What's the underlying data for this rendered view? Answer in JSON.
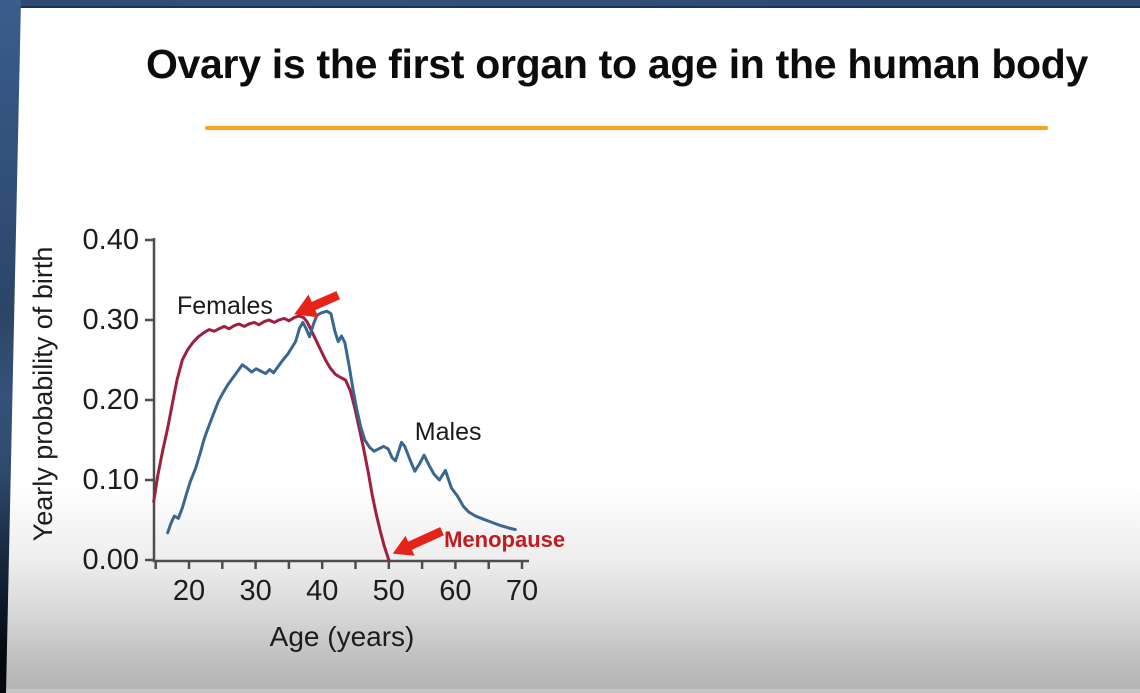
{
  "slide": {
    "title": "Ovary is the first organ to age in the human body",
    "underline_color": "#f5a71d"
  },
  "chart_data": {
    "type": "line",
    "xlabel": "Age (years)",
    "ylabel": "Yearly probability of birth",
    "xlim": [
      14.5,
      71
    ],
    "ylim": [
      0,
      0.4
    ],
    "grid": false,
    "axis_color": "#4d4d4d",
    "text_color": "#1c1c1c",
    "x_ticks": [
      {
        "value": 20,
        "label": "20"
      },
      {
        "value": 30,
        "label": "30"
      },
      {
        "value": 40,
        "label": "40"
      },
      {
        "value": 50,
        "label": "50"
      },
      {
        "value": 60,
        "label": "60"
      },
      {
        "value": 70,
        "label": "70"
      }
    ],
    "x_minor_ticks": [
      15,
      25,
      35,
      45,
      55,
      65
    ],
    "y_ticks": [
      {
        "value": 0.0,
        "label": "0.00"
      },
      {
        "value": 0.1,
        "label": "0.10"
      },
      {
        "value": 0.2,
        "label": "0.20"
      },
      {
        "value": 0.3,
        "label": "0.30"
      },
      {
        "value": 0.4,
        "label": "0.40"
      }
    ],
    "series": [
      {
        "name": "Females",
        "color": "#9e2040",
        "points": [
          [
            14.7,
            0.073
          ],
          [
            15.3,
            0.105
          ],
          [
            16,
            0.135
          ],
          [
            16.8,
            0.165
          ],
          [
            17.5,
            0.195
          ],
          [
            18.2,
            0.225
          ],
          [
            19,
            0.25
          ],
          [
            19.8,
            0.263
          ],
          [
            20.6,
            0.272
          ],
          [
            21.4,
            0.279
          ],
          [
            22.2,
            0.284
          ],
          [
            23,
            0.288
          ],
          [
            23.8,
            0.286
          ],
          [
            24.5,
            0.289
          ],
          [
            25.3,
            0.292
          ],
          [
            26,
            0.289
          ],
          [
            26.8,
            0.293
          ],
          [
            27.5,
            0.295
          ],
          [
            28.3,
            0.292
          ],
          [
            29,
            0.295
          ],
          [
            29.8,
            0.297
          ],
          [
            30.5,
            0.294
          ],
          [
            31.3,
            0.298
          ],
          [
            32,
            0.3
          ],
          [
            32.8,
            0.297
          ],
          [
            33.5,
            0.3
          ],
          [
            34.3,
            0.302
          ],
          [
            35,
            0.299
          ],
          [
            35.8,
            0.303
          ],
          [
            36.5,
            0.305
          ],
          [
            37.2,
            0.303
          ],
          [
            37.7,
            0.298
          ],
          [
            38.3,
            0.288
          ],
          [
            39,
            0.276
          ],
          [
            39.8,
            0.262
          ],
          [
            40.5,
            0.25
          ],
          [
            41.2,
            0.24
          ],
          [
            42,
            0.232
          ],
          [
            42.8,
            0.228
          ],
          [
            43.5,
            0.225
          ],
          [
            44.2,
            0.212
          ],
          [
            44.9,
            0.19
          ],
          [
            45.5,
            0.167
          ],
          [
            46.2,
            0.14
          ],
          [
            46.9,
            0.11
          ],
          [
            47.5,
            0.082
          ],
          [
            48.1,
            0.058
          ],
          [
            48.7,
            0.037
          ],
          [
            49.3,
            0.018
          ],
          [
            50,
            0
          ]
        ]
      },
      {
        "name": "Males",
        "color": "#3a678f",
        "points": [
          [
            16.8,
            0.034
          ],
          [
            17.3,
            0.046
          ],
          [
            17.8,
            0.055
          ],
          [
            18.4,
            0.052
          ],
          [
            19,
            0.065
          ],
          [
            19.6,
            0.082
          ],
          [
            20.2,
            0.098
          ],
          [
            21,
            0.115
          ],
          [
            21.7,
            0.134
          ],
          [
            22.3,
            0.152
          ],
          [
            23,
            0.168
          ],
          [
            23.7,
            0.183
          ],
          [
            24.4,
            0.198
          ],
          [
            25.1,
            0.209
          ],
          [
            25.9,
            0.22
          ],
          [
            26.6,
            0.228
          ],
          [
            27.3,
            0.236
          ],
          [
            28,
            0.244
          ],
          [
            28.7,
            0.24
          ],
          [
            29.4,
            0.235
          ],
          [
            30.1,
            0.239
          ],
          [
            30.8,
            0.236
          ],
          [
            31.5,
            0.233
          ],
          [
            32.1,
            0.238
          ],
          [
            32.7,
            0.234
          ],
          [
            33.4,
            0.242
          ],
          [
            34.1,
            0.25
          ],
          [
            34.8,
            0.257
          ],
          [
            35.4,
            0.265
          ],
          [
            36,
            0.273
          ],
          [
            36.6,
            0.29
          ],
          [
            37.1,
            0.297
          ],
          [
            37.6,
            0.289
          ],
          [
            38.1,
            0.279
          ],
          [
            38.7,
            0.295
          ],
          [
            39.2,
            0.306
          ],
          [
            39.9,
            0.309
          ],
          [
            40.7,
            0.311
          ],
          [
            41.3,
            0.308
          ],
          [
            41.9,
            0.286
          ],
          [
            42.4,
            0.273
          ],
          [
            42.9,
            0.28
          ],
          [
            43.4,
            0.272
          ],
          [
            44,
            0.245
          ],
          [
            44.6,
            0.215
          ],
          [
            45.2,
            0.188
          ],
          [
            45.8,
            0.166
          ],
          [
            46.4,
            0.15
          ],
          [
            47.1,
            0.141
          ],
          [
            47.8,
            0.136
          ],
          [
            48.5,
            0.139
          ],
          [
            49.2,
            0.142
          ],
          [
            49.9,
            0.139
          ],
          [
            50.5,
            0.128
          ],
          [
            51,
            0.124
          ],
          [
            51.9,
            0.147
          ],
          [
            52.4,
            0.142
          ],
          [
            53.2,
            0.125
          ],
          [
            53.9,
            0.111
          ],
          [
            54.6,
            0.12
          ],
          [
            55.3,
            0.131
          ],
          [
            56,
            0.119
          ],
          [
            56.8,
            0.107
          ],
          [
            57.6,
            0.1
          ],
          [
            58.5,
            0.112
          ],
          [
            59.4,
            0.09
          ],
          [
            60.3,
            0.08
          ],
          [
            61.2,
            0.067
          ],
          [
            62,
            0.06
          ],
          [
            63,
            0.055
          ],
          [
            64.2,
            0.051
          ],
          [
            65.5,
            0.047
          ],
          [
            66.8,
            0.043
          ],
          [
            68,
            0.04
          ],
          [
            69,
            0.038
          ]
        ]
      }
    ],
    "annotations": {
      "females_label": "Females",
      "females_pos": [
        18.2,
        0.3075
      ],
      "males_label": "Males",
      "males_pos": [
        53.9,
        0.15
      ],
      "menopause_label": "Menopause",
      "menopause_pos": [
        58.3,
        0.016
      ],
      "menopause_color": "#c11b20",
      "arrow_color": "#e5231b",
      "peak_arrow": {
        "tip": [
          35.8,
          0.307
        ],
        "tail": [
          42.4,
          0.331
        ]
      },
      "menopause_arrow": {
        "tip": [
          50.6,
          0.008
        ],
        "tail": [
          58.0,
          0.036
        ]
      }
    }
  }
}
